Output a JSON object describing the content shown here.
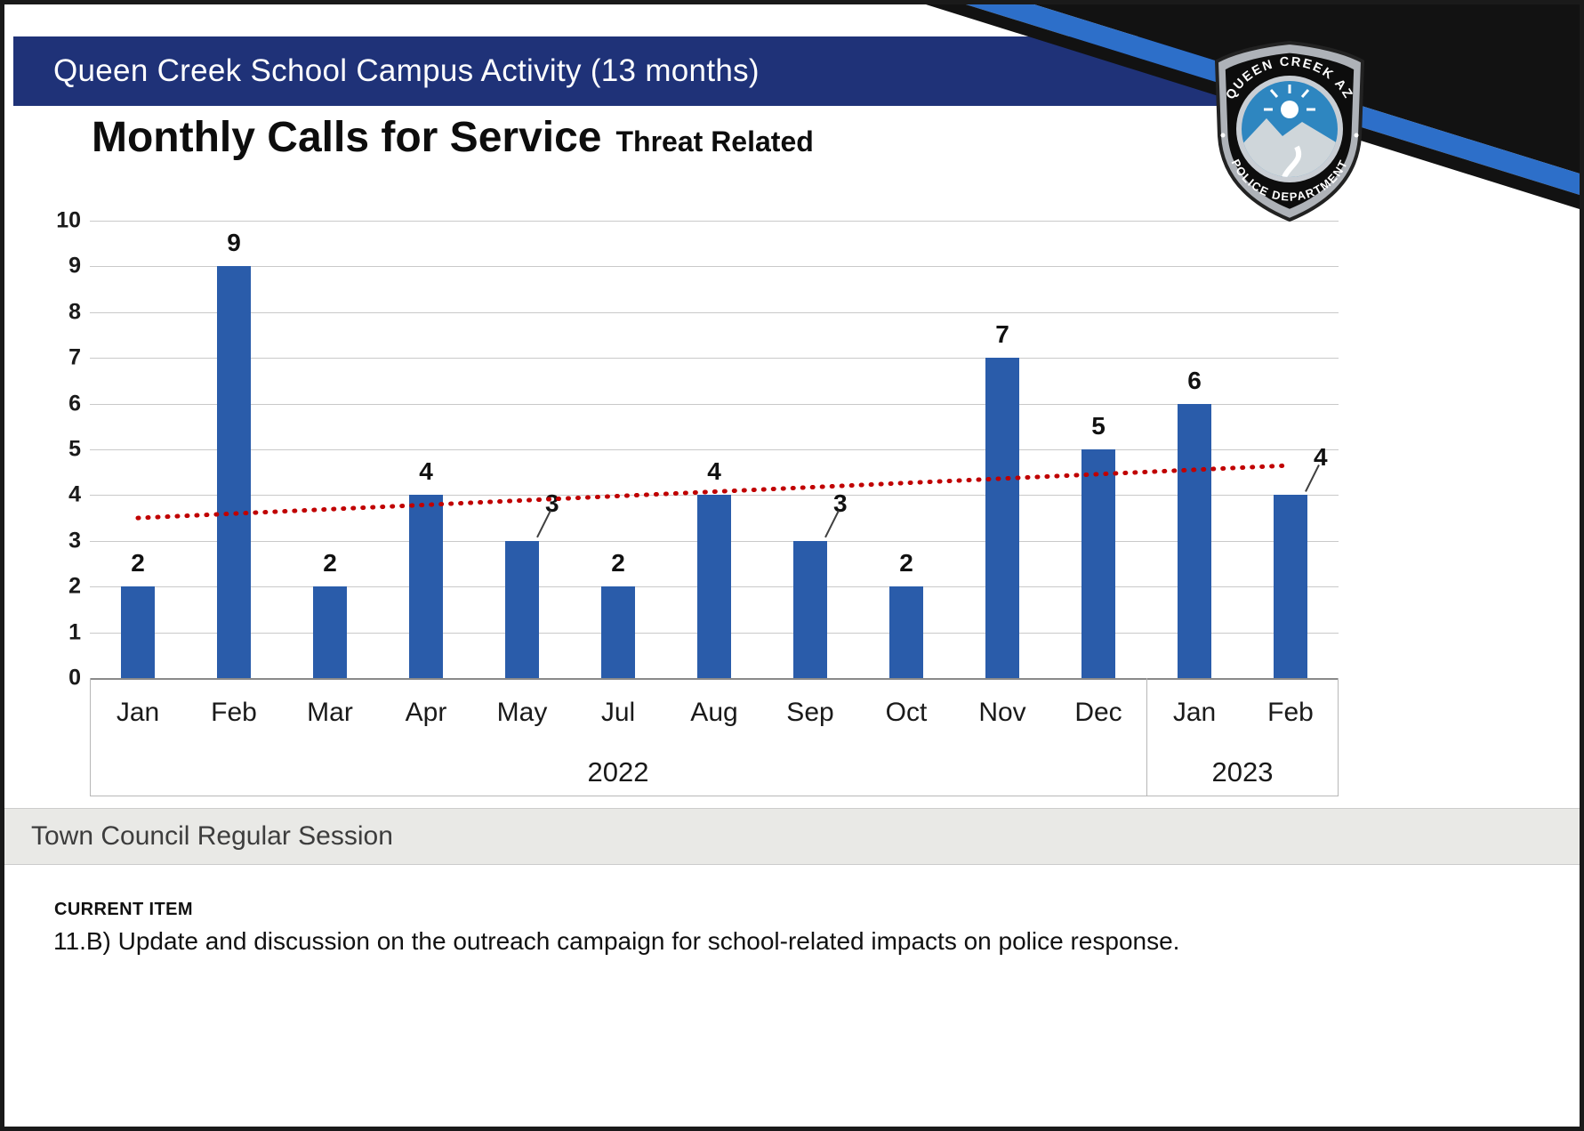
{
  "header": {
    "title": "Queen Creek School Campus Activity (13 months)"
  },
  "badge": {
    "top_text": "QUEEN CREEK AZ",
    "bottom_text": "POLICE DEPARTMENT"
  },
  "colors": {
    "header_bg": "#1f3278",
    "stripe_blue": "#2d6fc9",
    "corner_black": "#121212",
    "bar_blue": "#2a5caa",
    "trend_red": "#c00000",
    "badge_blue": "#2e86c0",
    "session_bg": "#e9e9e6"
  },
  "chart_data": {
    "type": "bar",
    "title": "Monthly Calls for Service",
    "subtitle": "Threat Related",
    "categories": [
      "Jan",
      "Feb",
      "Mar",
      "Apr",
      "May",
      "Jul",
      "Aug",
      "Sep",
      "Oct",
      "Nov",
      "Dec",
      "Jan",
      "Feb"
    ],
    "values": [
      2,
      9,
      2,
      4,
      3,
      2,
      4,
      3,
      2,
      7,
      5,
      6,
      4
    ],
    "year_groups": [
      {
        "label": "2022",
        "span": 11
      },
      {
        "label": "2023",
        "span": 2
      }
    ],
    "ylabel": "",
    "xlabel": "",
    "ylim": [
      0,
      10
    ],
    "ytick_step": 1,
    "grid": true,
    "legend": "none",
    "callout_indices": [
      4,
      7,
      12
    ],
    "trendline": {
      "type": "linear-dotted",
      "start_value": 3.5,
      "end_value": 4.65
    }
  },
  "footer": {
    "session_label": "Town Council Regular Session",
    "current_item_label": "CURRENT ITEM",
    "current_item_text": "11.B) Update and discussion on the outreach campaign for school-related impacts on police response."
  }
}
